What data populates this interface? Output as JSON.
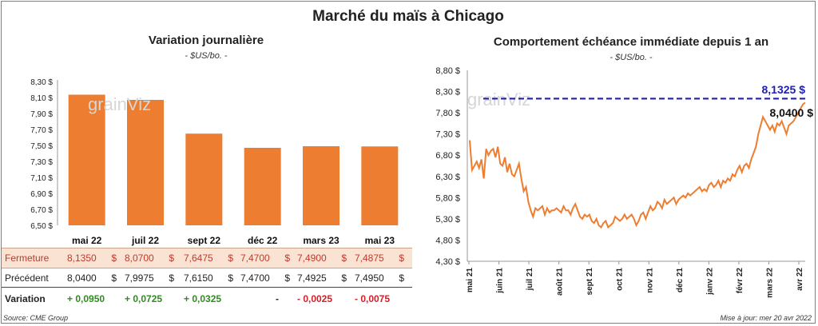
{
  "title": "Marché du maïs à Chicago",
  "left": {
    "title": "Variation journalière",
    "unit": "- $US/bo. -"
  },
  "right": {
    "title": "Comportement échéance immédiate depuis 1 an",
    "unit": "- $US/bo. -",
    "max_label": "8,1325 $",
    "last_label": "8,0400 $"
  },
  "watermark": "grainViz",
  "table": {
    "currency": "$",
    "rows": [
      {
        "label": "Fermeture",
        "values": [
          "8,1350",
          "8,0700",
          "7,6475",
          "7,4700",
          "7,4900",
          "7,4875"
        ]
      },
      {
        "label": "Précédent",
        "values": [
          "8,0400",
          "7,9975",
          "7,6150",
          "7,4700",
          "7,4925",
          "7,4950"
        ]
      },
      {
        "label": "Variation",
        "values": [
          "+ 0,0950",
          "+ 0,0725",
          "+ 0,0325",
          "-",
          "- 0,0025",
          "- 0,0075"
        ]
      }
    ]
  },
  "footer": {
    "source": "Source: CME Group",
    "updated": "Mise à jour: mer 20 avr 2022"
  },
  "colors": {
    "bar": "#ed7d31",
    "line": "#ed7d31",
    "ref": "#2020b0",
    "positive": "#2e8b1e",
    "negative": "#d0202a"
  },
  "chart_data": [
    {
      "type": "bar",
      "title": "Variation journalière",
      "categories": [
        "mai 22",
        "juil 22",
        "sept 22",
        "déc 22",
        "mars 23",
        "mai 23"
      ],
      "values": [
        8.135,
        8.07,
        7.6475,
        7.47,
        7.49,
        7.4875
      ],
      "ylim": [
        6.5,
        8.3
      ],
      "yticks": [
        "6,50 $",
        "6,70 $",
        "6,90 $",
        "7,10 $",
        "7,30 $",
        "7,50 $",
        "7,70 $",
        "7,90 $",
        "8,10 $",
        "8,30 $"
      ],
      "grid": false
    },
    {
      "type": "line",
      "title": "Comportement échéance immédiate depuis 1 an",
      "ylim": [
        4.3,
        8.8
      ],
      "yticks": [
        "4,30 $",
        "4,80 $",
        "5,30 $",
        "5,80 $",
        "6,30 $",
        "6,80 $",
        "7,30 $",
        "7,80 $",
        "8,30 $",
        "8,80 $"
      ],
      "xticks": [
        "mai 21",
        "juin 21",
        "juil 21",
        "août 21",
        "sept 21",
        "oct 21",
        "nov 21",
        "déc 21",
        "janv 22",
        "févr 22",
        "mars 22",
        "avr 22"
      ],
      "reference_line": 8.1325,
      "series": [
        {
          "values": [
            7.15,
            6.45,
            6.55,
            6.65,
            6.5,
            6.7,
            6.25,
            6.95,
            6.8,
            6.9,
            6.95,
            6.75,
            7.0,
            6.6,
            6.55,
            6.75,
            6.4,
            6.6,
            6.35,
            6.3,
            6.45,
            6.6,
            6.25,
            5.95,
            6.05,
            5.7,
            5.5,
            5.35,
            5.55,
            5.5,
            5.55,
            5.6,
            5.4,
            5.55,
            5.45,
            5.5,
            5.5,
            5.55,
            5.5,
            5.45,
            5.6,
            5.5,
            5.5,
            5.4,
            5.55,
            5.65,
            5.5,
            5.35,
            5.3,
            5.4,
            5.35,
            5.4,
            5.25,
            5.2,
            5.3,
            5.15,
            5.1,
            5.2,
            5.25,
            5.1,
            5.15,
            5.2,
            5.35,
            5.3,
            5.25,
            5.3,
            5.4,
            5.3,
            5.35,
            5.4,
            5.3,
            5.15,
            5.25,
            5.4,
            5.45,
            5.3,
            5.45,
            5.6,
            5.5,
            5.55,
            5.7,
            5.65,
            5.55,
            5.75,
            5.65,
            5.7,
            5.75,
            5.8,
            5.65,
            5.75,
            5.8,
            5.85,
            5.8,
            5.9,
            5.85,
            5.9,
            5.95,
            6.0,
            6.05,
            5.95,
            6.0,
            5.95,
            6.1,
            6.15,
            6.05,
            6.1,
            6.2,
            6.05,
            6.2,
            6.15,
            6.25,
            6.2,
            6.35,
            6.3,
            6.45,
            6.55,
            6.4,
            6.55,
            6.6,
            6.5,
            6.7,
            6.85,
            7.0,
            7.3,
            7.5,
            7.7,
            7.6,
            7.5,
            7.4,
            7.5,
            7.35,
            7.55,
            7.5,
            7.6,
            7.45,
            7.3,
            7.5,
            7.55,
            7.6,
            7.7,
            7.8,
            7.9,
            8.0,
            8.04
          ]
        }
      ]
    }
  ]
}
